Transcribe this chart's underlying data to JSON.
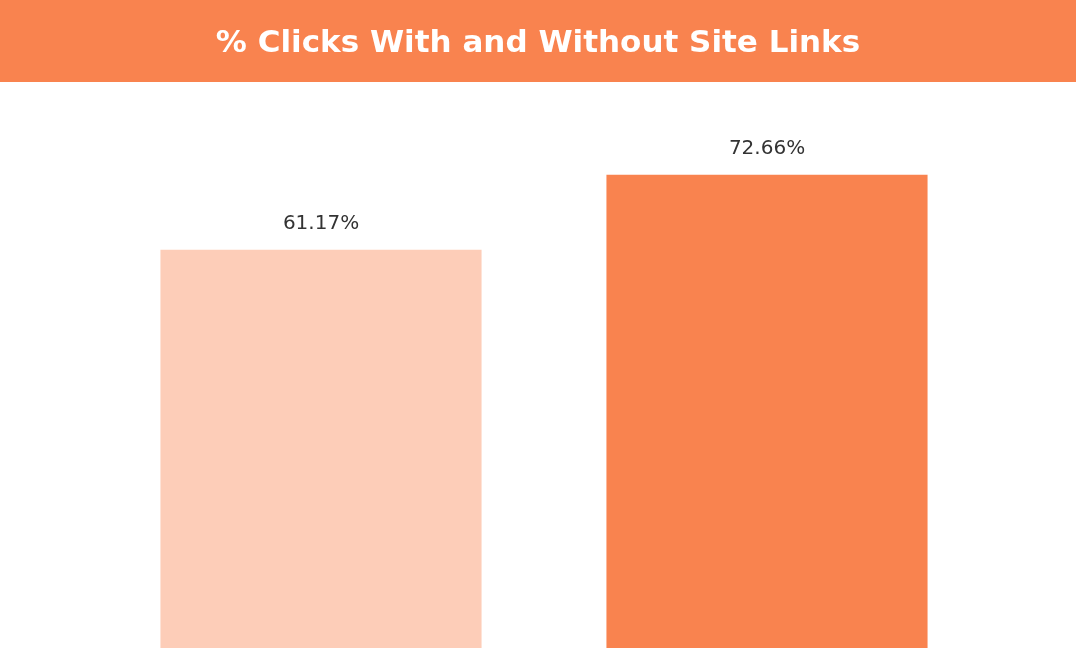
{
  "chart_data": {
    "type": "bar",
    "title": "% Clicks With and Without Site Links",
    "categories": [
      null,
      null
    ],
    "values": [
      61.17,
      72.66
    ],
    "colors": [
      "#fdcdb8",
      "#f9834f"
    ],
    "value_labels": [
      "61.17%",
      "72.66%"
    ]
  }
}
